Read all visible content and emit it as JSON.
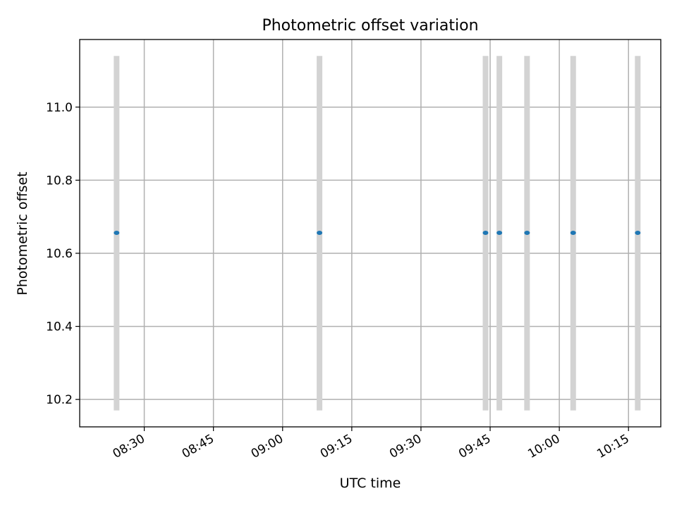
{
  "chart_data": {
    "type": "scatter",
    "title": "Photometric offset variation",
    "xlabel": "UTC time",
    "ylabel": "Photometric offset",
    "x_tick_labels": [
      "08:30",
      "08:45",
      "09:00",
      "09:15",
      "09:30",
      "09:45",
      "10:00",
      "10:15"
    ],
    "y_tick_labels": [
      "10.2",
      "10.4",
      "10.6",
      "10.8",
      "11.0"
    ],
    "y_ticks": [
      10.2,
      10.4,
      10.6,
      10.8,
      11.0
    ],
    "xlim": [
      "08:16",
      "10:22"
    ],
    "ylim": [
      10.125,
      11.185
    ],
    "grid": true,
    "series": [
      {
        "color": "#1f77b4",
        "points": [
          {
            "x": "08:24",
            "y": 10.656
          },
          {
            "x": "09:08",
            "y": 10.656
          },
          {
            "x": "09:44",
            "y": 10.656
          },
          {
            "x": "09:47",
            "y": 10.656
          },
          {
            "x": "09:53",
            "y": 10.656
          },
          {
            "x": "10:03",
            "y": 10.656
          },
          {
            "x": "10:17",
            "y": 10.656
          }
        ]
      }
    ],
    "bands": {
      "color": "#d3d3d3",
      "x": [
        "08:24",
        "09:08",
        "09:44",
        "09:47",
        "09:53",
        "10:03",
        "10:17"
      ],
      "y_range": [
        10.17,
        11.14
      ]
    }
  }
}
